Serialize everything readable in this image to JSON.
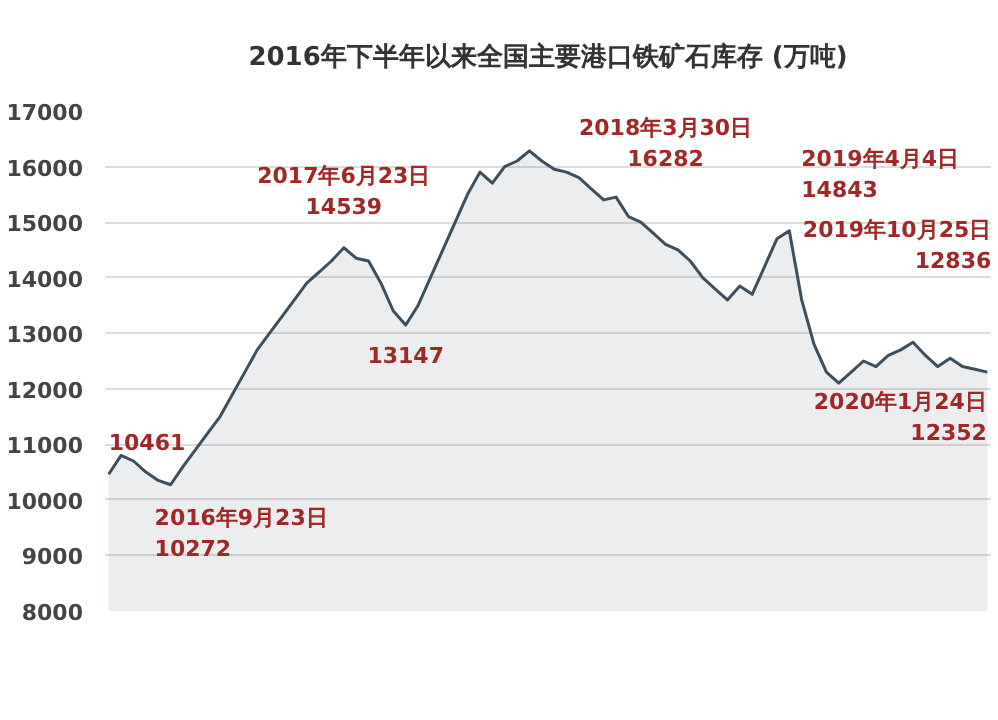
{
  "chart_data": {
    "type": "area",
    "title": "2016年下半年以来全国主要港口铁矿石库存 (万吨)",
    "categories": [
      null,
      null,
      null,
      null,
      null,
      null,
      null,
      null,
      null,
      null,
      null,
      null,
      null,
      null,
      null,
      null,
      null,
      null,
      null,
      null,
      null,
      null,
      null,
      null,
      null,
      null,
      null,
      null,
      null,
      null,
      null,
      null,
      null,
      null,
      null,
      null,
      null,
      null,
      null,
      null,
      null,
      null,
      null,
      null,
      null,
      null,
      null,
      null,
      null,
      null,
      null,
      null,
      null,
      null,
      null,
      null,
      null,
      null,
      null,
      null,
      null,
      null,
      null,
      null,
      null,
      null,
      null,
      null,
      null,
      null,
      null,
      null
    ],
    "series": [
      {
        "color": "#3d4f5c",
        "values": [
          10461,
          10800,
          10700,
          10500,
          10350,
          10272,
          10600,
          10900,
          11200,
          11500,
          11900,
          12300,
          12700,
          13000,
          13300,
          13600,
          13900,
          14100,
          14300,
          14539,
          14350,
          14300,
          13900,
          13400,
          13147,
          13500,
          14000,
          14500,
          15000,
          15500,
          15900,
          15700,
          16000,
          16100,
          16282,
          16100,
          15950,
          15900,
          15800,
          15600,
          15400,
          15450,
          15100,
          15000,
          14800,
          14600,
          14500,
          14300,
          14000,
          13800,
          13600,
          13850,
          13700,
          14200,
          14700,
          14843,
          13600,
          12800,
          12300,
          12100,
          12300,
          12500,
          12400,
          12600,
          12700,
          12836,
          12600,
          12400,
          12550,
          12400,
          12352,
          12300
        ]
      }
    ],
    "ylim": [
      8000,
      17000
    ],
    "yticks": [
      8000,
      9000,
      10000,
      11000,
      12000,
      13000,
      14000,
      15000,
      16000,
      17000
    ],
    "tick_labels": "y",
    "grid": "y",
    "annotations": [
      "10461",
      "2016年9月23日\n10272",
      "2017年6月23日\n14539",
      "13147",
      "2018年3月30日\n16282",
      "2019年4月4日\n14843",
      "2019年10月25日\n12836",
      "2020年1月24日\n12352"
    ]
  }
}
